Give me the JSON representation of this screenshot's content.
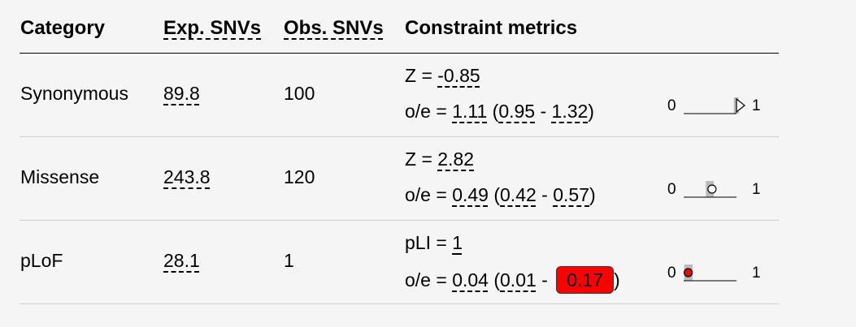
{
  "headers": {
    "category": "Category",
    "exp_snvs": "Exp. SNVs",
    "obs_snvs": "Obs. SNVs",
    "constraint": "Constraint metrics"
  },
  "rows": [
    {
      "category": "Synonymous",
      "exp": "89.8",
      "obs": "100",
      "metric1_label": "Z = ",
      "metric1_value": "-0.85",
      "oe_label": "o/e = ",
      "oe": "1.11",
      "ci_lower": "0.95",
      "ci_upper": "1.32",
      "ci_upper_highlight": false,
      "viz": {
        "min_label": "0",
        "max_label": "1",
        "oe": 1.11,
        "ci_lower": 0.95,
        "ci_upper": 1.32,
        "marker": "triangle-right"
      }
    },
    {
      "category": "Missense",
      "exp": "243.8",
      "obs": "120",
      "metric1_label": "Z = ",
      "metric1_value": "2.82",
      "oe_label": "o/e = ",
      "oe": "0.49",
      "ci_lower": "0.42",
      "ci_upper": "0.57",
      "ci_upper_highlight": false,
      "viz": {
        "min_label": "0",
        "max_label": "1",
        "oe": 0.49,
        "ci_lower": 0.42,
        "ci_upper": 0.57,
        "marker": "circle-open"
      }
    },
    {
      "category": "pLoF",
      "exp": "28.1",
      "obs": "1",
      "metric1_label": "pLI = ",
      "metric1_value": "1",
      "oe_label": "o/e = ",
      "oe": "0.04",
      "ci_lower": "0.01",
      "ci_upper": "0.17",
      "ci_upper_highlight": true,
      "viz": {
        "min_label": "0",
        "max_label": "1",
        "oe": 0.04,
        "ci_lower": 0.01,
        "ci_upper": 0.17,
        "marker": "circle-red"
      }
    }
  ],
  "colors": {
    "highlight": "#ff0000",
    "ci_bar": "#bbbbbb",
    "marker_red": "#ee0000"
  },
  "punct": {
    "open_paren": "(",
    "dash": " - ",
    "close_paren": ")"
  }
}
